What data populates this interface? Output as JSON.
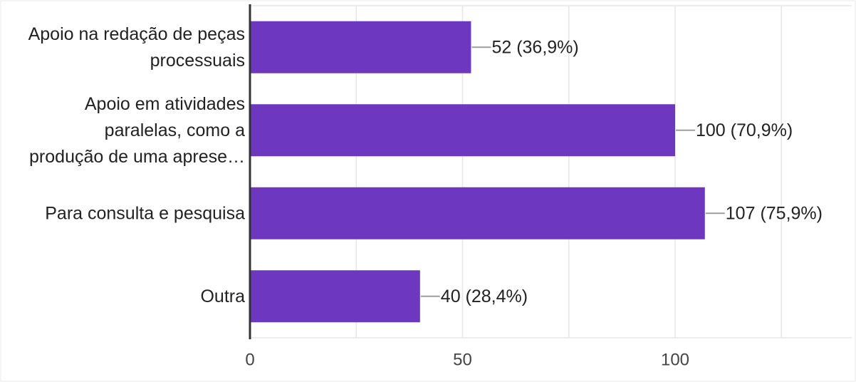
{
  "chart_data": {
    "type": "bar",
    "orientation": "horizontal",
    "categories": [
      [
        "Apoio na redação de peças",
        "processuais"
      ],
      [
        "Apoio em atividades",
        "paralelas, como a",
        "produção de uma aprese…"
      ],
      [
        "Para consulta e pesquisa"
      ],
      [
        "Outra"
      ]
    ],
    "values": [
      52,
      100,
      107,
      40
    ],
    "value_labels": [
      "52 (36,9%)",
      "100 (70,9%)",
      "107 (75,9%)",
      "40 (28,4%)"
    ],
    "xlim": [
      0,
      140
    ],
    "xticks": [
      0,
      50,
      100
    ],
    "xtick_labels": [
      "0",
      "50",
      "100"
    ],
    "grid": true,
    "colors": {
      "bar": "#6d38bf",
      "grid": "#e6e6e6",
      "axis": "#333333",
      "leader": "#9e9e9e",
      "text": "#222222"
    }
  }
}
